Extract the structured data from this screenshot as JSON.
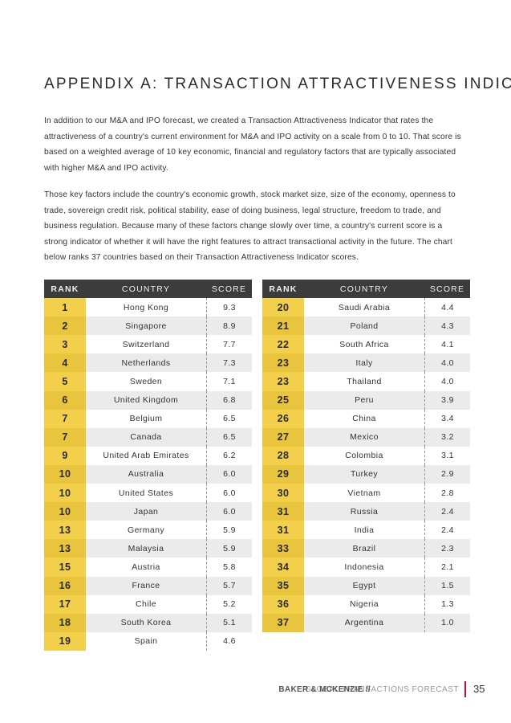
{
  "header": {
    "title": "APPENDIX A: TRANSACTION ATTRACTIVENESS INDICATOR"
  },
  "body": {
    "paragraphs": [
      "In addition to our M&A and IPO forecast, we created a Transaction Attractiveness Indicator that rates the attractiveness of a country's current environment for M&A and IPO activity on a scale from 0 to 10. That score is based on a weighted average of 10 key economic, financial and regulatory factors that are typically associated with higher M&A and IPO activity.",
      "Those key factors include the country's economic growth, stock market size, size of the economy, openness to trade, sovereign credit risk, political stability, ease of doing business, legal structure, freedom to trade, and business regulation. Because many of these factors change slowly over time, a country's current score is a strong indicator of whether it will have the right features to attract transactional activity in the future. The chart below ranks 37 countries based on their Transaction Attractiveness Indicator scores."
    ]
  },
  "tables": [
    {
      "columns": [
        "RANK",
        "COUNTRY",
        "SCORE"
      ],
      "rows": [
        [
          "1",
          "Hong Kong",
          "9.3"
        ],
        [
          "2",
          "Singapore",
          "8.9"
        ],
        [
          "3",
          "Switzerland",
          "7.7"
        ],
        [
          "4",
          "Netherlands",
          "7.3"
        ],
        [
          "5",
          "Sweden",
          "7.1"
        ],
        [
          "6",
          "United Kingdom",
          "6.8"
        ],
        [
          "7",
          "Belgium",
          "6.5"
        ],
        [
          "7",
          "Canada",
          "6.5"
        ],
        [
          "9",
          "United Arab Emirates",
          "6.2"
        ],
        [
          "10",
          "Australia",
          "6.0"
        ],
        [
          "10",
          "United States",
          "6.0"
        ],
        [
          "10",
          "Japan",
          "6.0"
        ],
        [
          "13",
          "Germany",
          "5.9"
        ],
        [
          "13",
          "Malaysia",
          "5.9"
        ],
        [
          "15",
          "Austria",
          "5.8"
        ],
        [
          "16",
          "France",
          "5.7"
        ],
        [
          "17",
          "Chile",
          "5.2"
        ],
        [
          "18",
          "South Korea",
          "5.1"
        ],
        [
          "19",
          "Spain",
          "4.6"
        ]
      ]
    },
    {
      "columns": [
        "RANK",
        "COUNTRY",
        "SCORE"
      ],
      "rows": [
        [
          "20",
          "Saudi Arabia",
          "4.4"
        ],
        [
          "21",
          "Poland",
          "4.3"
        ],
        [
          "22",
          "South Africa",
          "4.1"
        ],
        [
          "23",
          "Italy",
          "4.0"
        ],
        [
          "23",
          "Thailand",
          "4.0"
        ],
        [
          "25",
          "Peru",
          "3.9"
        ],
        [
          "26",
          "China",
          "3.4"
        ],
        [
          "27",
          "Mexico",
          "3.2"
        ],
        [
          "28",
          "Colombia",
          "3.1"
        ],
        [
          "29",
          "Turkey",
          "2.9"
        ],
        [
          "30",
          "Vietnam",
          "2.8"
        ],
        [
          "31",
          "Russia",
          "2.4"
        ],
        [
          "31",
          "India",
          "2.4"
        ],
        [
          "33",
          "Brazil",
          "2.3"
        ],
        [
          "34",
          "Indonesia",
          "2.1"
        ],
        [
          "35",
          "Egypt",
          "1.5"
        ],
        [
          "36",
          "Nigeria",
          "1.3"
        ],
        [
          "37",
          "Argentina",
          "1.0"
        ]
      ]
    }
  ],
  "footer": {
    "firm": "BAKER & MCKENZIE //",
    "publication": "GLOBAL TRANSACTIONS FORECAST",
    "page_number": "35"
  }
}
